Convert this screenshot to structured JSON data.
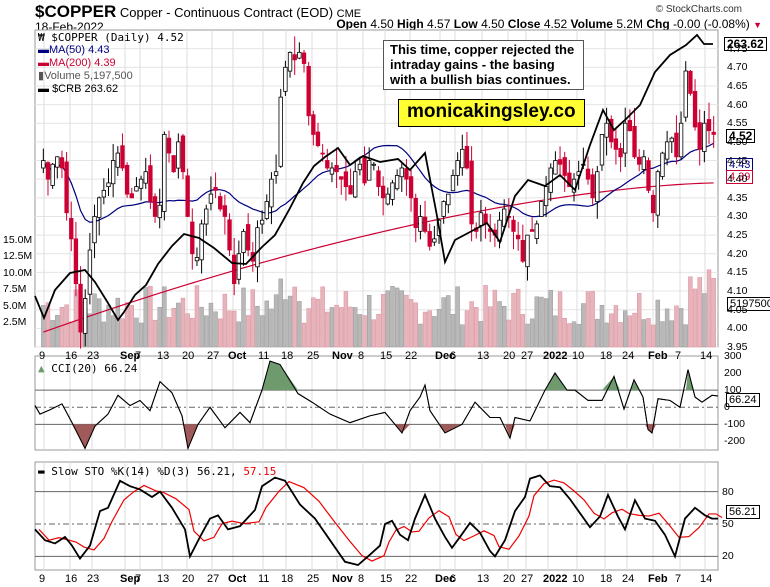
{
  "header": {
    "symbol": "$COPPER",
    "name": "Copper - Continuous Contract (EOD)",
    "exchange": "CME",
    "date": "18-Feb-2022",
    "copyright": "© StockCharts.com",
    "open_label": "Open",
    "open": "4.50",
    "high_label": "High",
    "high": "4.57",
    "low_label": "Low",
    "low": "4.50",
    "close_label": "Close",
    "close": "4.52",
    "volume_label": "Volume",
    "volume": "5.2M",
    "chg_label": "Chg",
    "chg": "-0.00 (-0.08%)"
  },
  "legend": {
    "price": "$COPPER (Daily) 4.52",
    "ma50": "MA(50) 4.43",
    "ma200": "MA(200) 4.39",
    "volume": "Volume 5,197,500",
    "crb": "$CRB 263.62"
  },
  "annotation": {
    "note": "This time, copper rejected the intraday gains - the basing with a bullish bias continues.",
    "brand": "monicakingsley.co"
  },
  "tags": {
    "crb": "263.62",
    "price": "4.52",
    "ma50": "4.43",
    "ma200": "4.39",
    "volume": "5197500",
    "cci": "66.24",
    "sto": "56.21"
  },
  "indicators": {
    "cci_label": "CCI(20) 66.24",
    "sto_label": "Slow STO %K(14) %D(3) 56.21,",
    "sto_d": "57.15"
  },
  "colors": {
    "up": "#ffffff",
    "down": "#cc0033",
    "ma50": "#000080",
    "ma200": "#cc0033",
    "crb": "#000000",
    "vol_up": "#b8b8b8",
    "vol_down": "#e8b4bc",
    "cci_pos": "#6e9a6e",
    "cci_neg": "#a05a5a",
    "sto_k": "#000000",
    "sto_d": "#ee0000"
  },
  "chart_data": [
    {
      "type": "candlestick",
      "title": "$COPPER Copper - Continuous Contract (EOD) CME",
      "x_ticks": [
        "9",
        "16",
        "23",
        "Sep",
        "7",
        "13",
        "20",
        "27",
        "Oct",
        "11",
        "18",
        "25",
        "Nov",
        "8",
        "15",
        "22",
        "Dec",
        "6",
        "13",
        "20",
        "27",
        "2022",
        "10",
        "18",
        "24",
        "Feb",
        "7",
        "14"
      ],
      "y_ticks": [
        "3.95",
        "4.00",
        "4.05",
        "4.10",
        "4.15",
        "4.20",
        "4.25",
        "4.30",
        "4.35",
        "4.40",
        "4.45",
        "4.50",
        "4.55",
        "4.60",
        "4.65",
        "4.70",
        "4.75"
      ],
      "ylim": [
        3.95,
        4.8
      ],
      "close_approx": [
        4.45,
        4.4,
        4.44,
        4.46,
        4.43,
        4.31,
        4.24,
        4.12,
        3.99,
        4.08,
        4.21,
        4.3,
        4.35,
        4.37,
        4.39,
        4.45,
        4.47,
        4.43,
        4.36,
        4.35,
        4.38,
        4.4,
        4.42,
        4.34,
        4.3,
        4.33,
        4.52,
        4.47,
        4.42,
        4.5,
        4.42,
        4.3,
        4.2,
        4.19,
        4.28,
        4.32,
        4.36,
        4.37,
        4.32,
        4.3,
        4.21,
        4.12,
        4.2,
        4.26,
        4.21,
        4.18,
        4.27,
        4.29,
        4.34,
        4.4,
        4.42,
        4.62,
        4.7,
        4.74,
        4.72,
        4.74,
        4.71,
        4.57,
        4.52,
        4.49,
        4.47,
        4.43,
        4.43,
        4.42,
        4.4,
        4.38,
        4.36,
        4.42,
        4.44,
        4.39,
        4.45,
        4.44,
        4.38,
        4.35,
        4.36,
        4.39,
        4.41,
        4.43,
        4.4,
        4.35,
        4.27,
        4.3,
        4.26,
        4.22,
        4.24,
        4.29,
        4.34,
        4.36,
        4.41,
        4.45,
        4.48,
        4.43,
        4.28,
        4.26,
        4.31,
        4.28,
        4.26,
        4.25,
        4.29,
        4.32,
        4.3,
        4.26,
        4.24,
        4.18,
        4.25,
        4.26,
        4.28,
        4.34,
        4.38,
        4.43,
        4.45,
        4.44,
        4.41,
        4.38,
        4.4,
        4.42,
        4.44,
        4.4,
        4.35,
        4.42,
        4.52,
        4.55,
        4.5,
        4.48,
        4.46,
        4.55,
        4.53,
        4.46,
        4.44,
        4.46,
        4.37,
        4.31,
        4.42,
        4.47,
        4.5,
        4.51,
        4.46,
        4.55,
        4.69,
        4.63,
        4.54,
        4.48,
        4.55,
        4.53,
        4.52
      ],
      "series": [
        {
          "name": "MA(50)",
          "last": 4.43
        },
        {
          "name": "MA(200)",
          "last": 4.39
        },
        {
          "name": "$CRB",
          "last": 263.62
        }
      ],
      "volume_ticks": [
        "2.5M",
        "5.0M",
        "7.5M",
        "10.0M",
        "12.5M",
        "15.0M"
      ],
      "volume_last": 5197500
    },
    {
      "type": "line",
      "title": "CCI(20)",
      "last": 66.24,
      "y_ticks": [
        "300",
        "200",
        "100",
        "0",
        "-100",
        "-200"
      ],
      "ylim": [
        -250,
        300
      ],
      "reference_lines": [
        100,
        0,
        -100
      ]
    },
    {
      "type": "line",
      "title": "Slow STO %K(14) %D(3)",
      "series": [
        {
          "name": "%K",
          "last": 56.21
        },
        {
          "name": "%D",
          "last": 57.15
        }
      ],
      "y_ticks": [
        "80",
        "50",
        "20"
      ],
      "ylim": [
        0,
        100
      ],
      "reference_lines": [
        80,
        50,
        20
      ]
    }
  ]
}
